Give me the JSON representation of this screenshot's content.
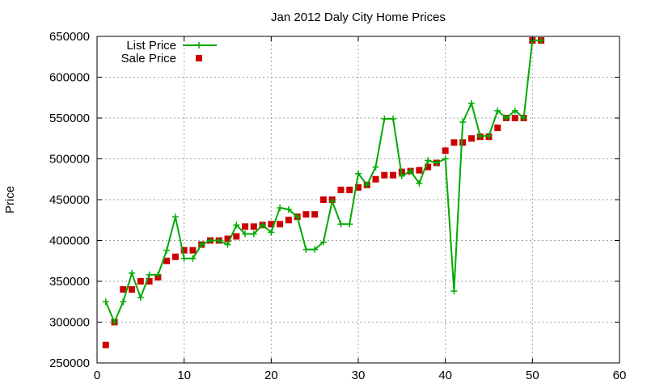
{
  "chart_data": {
    "type": "line",
    "title": "Jan 2012 Daly City Home Prices",
    "xlabel": "",
    "ylabel": "Price",
    "xlim": [
      0,
      60
    ],
    "ylim": [
      250000,
      650000
    ],
    "xticks": [
      0,
      10,
      20,
      30,
      40,
      50,
      60
    ],
    "yticks": [
      250000,
      300000,
      350000,
      400000,
      450000,
      500000,
      550000,
      600000,
      650000
    ],
    "grid": true,
    "legend_position": "top-left",
    "series": [
      {
        "name": "List Price",
        "style": "line+crosses",
        "color": "#00aa00",
        "x": [
          1,
          2,
          3,
          4,
          5,
          6,
          7,
          8,
          9,
          10,
          11,
          12,
          13,
          14,
          15,
          16,
          17,
          18,
          19,
          20,
          21,
          22,
          23,
          24,
          25,
          26,
          27,
          28,
          29,
          30,
          31,
          32,
          33,
          34,
          35,
          36,
          37,
          38,
          39,
          40,
          41,
          42,
          43,
          44,
          45,
          46,
          47,
          48,
          49,
          50,
          51
        ],
        "y": [
          325000,
          300000,
          325000,
          360000,
          330000,
          358000,
          358000,
          388000,
          429000,
          378000,
          378000,
          395000,
          400000,
          400000,
          395000,
          419000,
          408000,
          408000,
          419000,
          410000,
          440000,
          438000,
          429000,
          389000,
          389000,
          398000,
          448000,
          420000,
          420000,
          482000,
          468000,
          490000,
          549000,
          549000,
          479000,
          485000,
          470000,
          498000,
          495000,
          500000,
          338000,
          545000,
          568000,
          528000,
          528000,
          559000,
          550000,
          559000,
          550000,
          645000,
          645000
        ]
      },
      {
        "name": "Sale Price",
        "style": "squares",
        "color": "#cc0000",
        "x": [
          1,
          2,
          3,
          4,
          5,
          6,
          7,
          8,
          9,
          10,
          11,
          12,
          13,
          14,
          15,
          16,
          17,
          18,
          19,
          20,
          21,
          22,
          23,
          24,
          25,
          26,
          27,
          28,
          29,
          30,
          31,
          32,
          33,
          34,
          35,
          36,
          37,
          38,
          39,
          40,
          41,
          42,
          43,
          44,
          45,
          46,
          47,
          48,
          49,
          50,
          51
        ],
        "y": [
          272000,
          300000,
          340000,
          340000,
          350000,
          350000,
          355000,
          375000,
          380000,
          388000,
          388000,
          395000,
          400000,
          400000,
          402000,
          405000,
          417000,
          417000,
          419000,
          420000,
          420000,
          425000,
          429000,
          432000,
          432000,
          450000,
          450000,
          462000,
          462000,
          465000,
          468000,
          475000,
          480000,
          480000,
          484000,
          485000,
          486000,
          490000,
          495000,
          510000,
          520000,
          520000,
          525000,
          527000,
          527000,
          538000,
          550000,
          550000,
          550000,
          645000,
          645000
        ]
      }
    ]
  }
}
